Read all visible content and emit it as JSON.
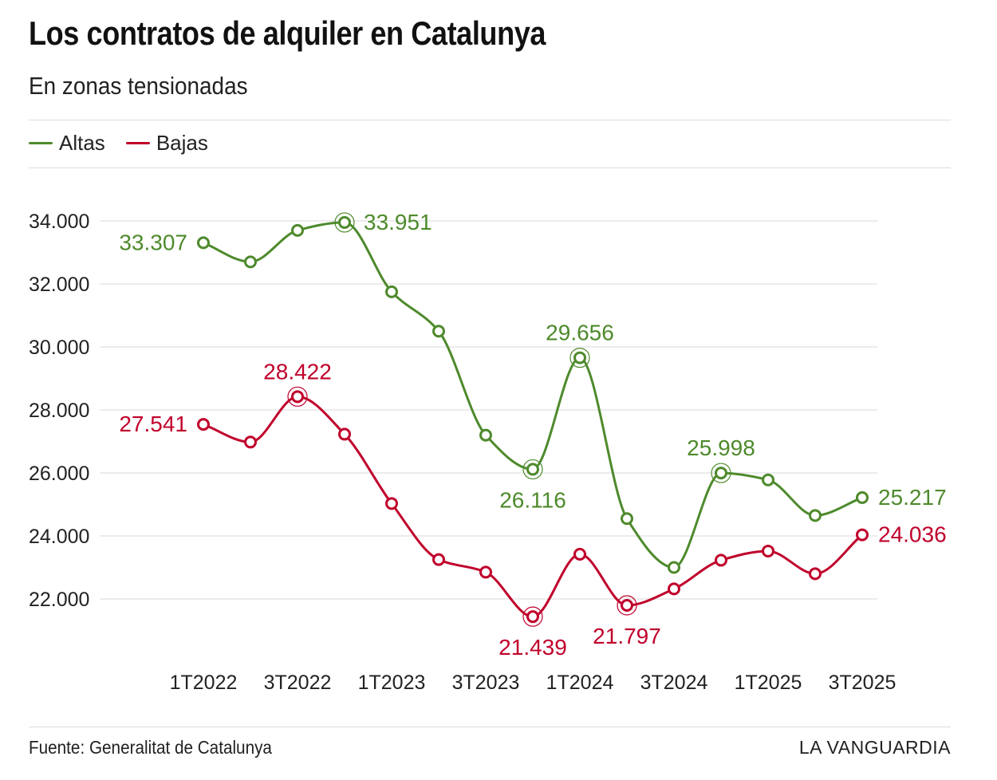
{
  "header": {
    "title": "Los contratos de alquiler en Catalunya",
    "subtitle": "En zonas tensionadas"
  },
  "legend": [
    {
      "label": "Altas",
      "color": "#4e8a2c"
    },
    {
      "label": "Bajas",
      "color": "#c0002b"
    }
  ],
  "footer": {
    "source": "Fuente: Generalitat de Catalunya",
    "brand": "LA VANGUARDIA"
  },
  "chart_data": {
    "type": "line",
    "title": "Los contratos de alquiler en Catalunya",
    "subtitle": "En zonas tensionadas",
    "x": [
      "1T2022",
      "2T2022",
      "3T2022",
      "4T2022",
      "1T2023",
      "2T2023",
      "3T2023",
      "4T2023",
      "1T2024",
      "2T2024",
      "3T2024",
      "4T2024",
      "1T2025",
      "2T2025",
      "3T2025"
    ],
    "x_tick_labels": [
      "1T2022",
      "3T2022",
      "1T2023",
      "3T2023",
      "1T2024",
      "3T2024",
      "1T2025",
      "3T2025"
    ],
    "y_ticks": [
      "22.000",
      "24.000",
      "26.000",
      "28.000",
      "30.000",
      "32.000",
      "34.000"
    ],
    "y_tick_values": [
      22000,
      24000,
      26000,
      28000,
      30000,
      32000,
      34000
    ],
    "ylim": [
      20500,
      34500
    ],
    "series": [
      {
        "name": "Altas",
        "color": "#4e8a2c",
        "values": [
          33307,
          32700,
          33700,
          33951,
          31750,
          30500,
          27200,
          26116,
          29656,
          24550,
          23000,
          25998,
          25780,
          24650,
          25217
        ],
        "annotations": [
          {
            "index": 0,
            "label": "33.307",
            "highlight": false
          },
          {
            "index": 3,
            "label": "33.951",
            "highlight": true
          },
          {
            "index": 7,
            "label": "26.116",
            "highlight": true
          },
          {
            "index": 8,
            "label": "29.656",
            "highlight": true
          },
          {
            "index": 11,
            "label": "25.998",
            "highlight": true
          },
          {
            "index": 14,
            "label": "25.217",
            "highlight": false
          }
        ]
      },
      {
        "name": "Bajas",
        "color": "#c0002b",
        "values": [
          27541,
          26980,
          28422,
          27230,
          25030,
          23250,
          22850,
          21439,
          23420,
          21797,
          22320,
          23230,
          23520,
          22800,
          24036
        ],
        "annotations": [
          {
            "index": 0,
            "label": "27.541",
            "highlight": false
          },
          {
            "index": 2,
            "label": "28.422",
            "highlight": true
          },
          {
            "index": 7,
            "label": "21.439",
            "highlight": true
          },
          {
            "index": 9,
            "label": "21.797",
            "highlight": true
          },
          {
            "index": 14,
            "label": "24.036",
            "highlight": false
          }
        ]
      }
    ],
    "grid": true,
    "legend_position": "top-left"
  }
}
